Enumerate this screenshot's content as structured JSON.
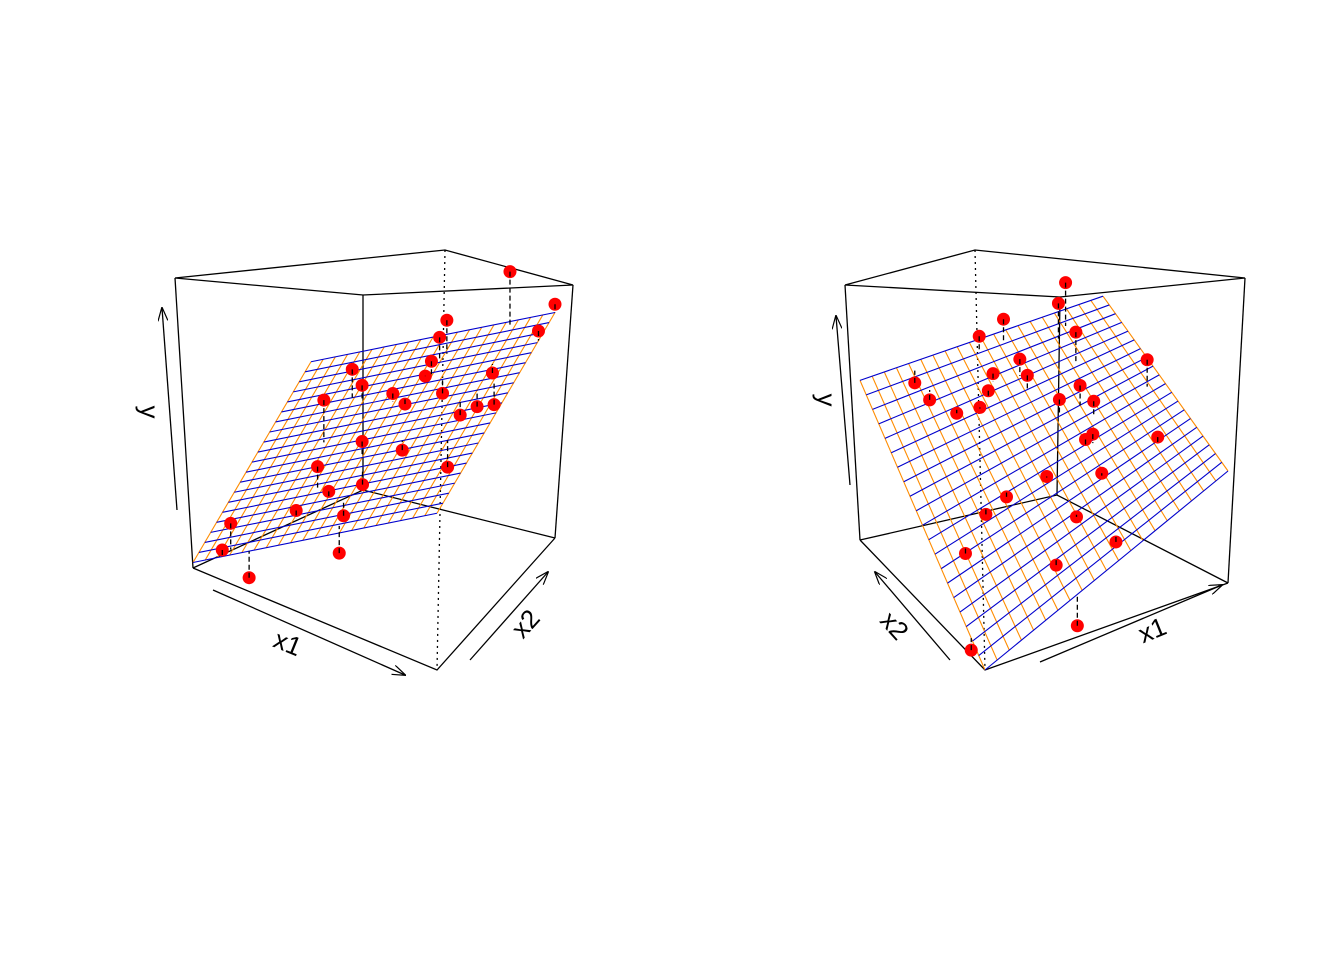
{
  "chart_data": [
    {
      "type": "scatter3d",
      "axis_labels": {
        "x1": "x1",
        "x2": "x2",
        "y": "y"
      },
      "points": {
        "x1": [
          0.83,
          1.0,
          1.0,
          0.61,
          0.59,
          0.6,
          0.29,
          0.34,
          0.57,
          0.49,
          0.54,
          0.66,
          0.85,
          0.28,
          0.8,
          0.85,
          0.91,
          0.49,
          0.64,
          0.85,
          0.38,
          0.45,
          0.54,
          0.36,
          0.53,
          0.14,
          0.12,
          0.58,
          0.23
        ],
        "x2": [
          0.97,
          1.0,
          0.86,
          0.89,
          0.87,
          0.78,
          0.75,
          0.73,
          0.79,
          0.68,
          0.68,
          0.75,
          0.78,
          0.53,
          0.61,
          0.65,
          0.67,
          0.42,
          0.45,
          0.4,
          0.27,
          0.22,
          0.32,
          0.13,
          0.18,
          0.03,
          0,
          0.04,
          0
        ],
        "y": [
          0.92,
          0.85,
          0.82,
          0.7,
          0.64,
          0.6,
          0.47,
          0.44,
          0.53,
          0.49,
          0.47,
          0.52,
          0.65,
          0.46,
          0.56,
          0.59,
          0.61,
          0.44,
          0.45,
          0.49,
          0.38,
          0.34,
          0.35,
          0.28,
          0.3,
          0.2,
          0.11,
          0.25,
          0.05
        ]
      },
      "point_color": "#ff0000",
      "surface": {
        "corners": [
          0.02,
          0.57,
          0.27,
          0.82
        ],
        "x1_line_color": "#0000cd",
        "x2_line_color": "#ff8c00"
      }
    },
    {
      "type": "scatter3d",
      "axis_labels": {
        "x1": "x1",
        "x2": "x2",
        "y": "y"
      },
      "points": {
        "x1": [
          0.81,
          0.76,
          0.77,
          0.57,
          0.47,
          0.56,
          0.46,
          0.56,
          0.94,
          0.21,
          0.23,
          0.42,
          0.29,
          0.37,
          0.7,
          0.62,
          0.72,
          0.67,
          0.64,
          0.86,
          0.64,
          0.47,
          0.32,
          0.23,
          0.5,
          0.58,
          0.11,
          0.37,
          0.38,
          0
        ],
        "x2": [
          0.93,
          0.89,
          0.77,
          0.96,
          0.96,
          0.81,
          0.83,
          0.75,
          0.53,
          0.97,
          0.89,
          0.79,
          0.79,
          0.76,
          0.6,
          0.61,
          0.53,
          0.44,
          0.44,
          0.29,
          0.31,
          0.42,
          0.45,
          0.44,
          0.24,
          0.08,
          0.37,
          0.15,
          0,
          0.11
        ],
        "y": [
          0.7,
          0.66,
          0.61,
          0.63,
          0.6,
          0.56,
          0.53,
          0.53,
          0.57,
          0.51,
          0.48,
          0.5,
          0.46,
          0.47,
          0.52,
          0.49,
          0.49,
          0.43,
          0.42,
          0.43,
          0.36,
          0.35,
          0.31,
          0.28,
          0.28,
          0.24,
          0.21,
          0.19,
          0.04,
          0.02
        ]
      },
      "point_color": "#ff0000",
      "surface": {
        "corners": [
          0,
          0.4,
          0.57,
          0.56
        ],
        "x1_line_color": "#0000cd",
        "x2_line_color": "#ff8c00"
      }
    }
  ]
}
